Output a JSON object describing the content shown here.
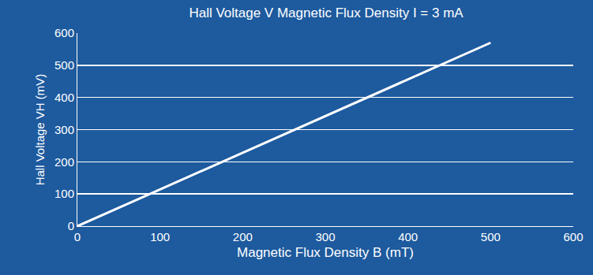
{
  "chart_data": {
    "type": "line",
    "title": "Hall Voltage V Magnetic Flux Density I = 3 mA",
    "x_label": "Magnetic Flux Density B (mT)",
    "y_label": "Hall Voltage VH (mV)",
    "x": [
      0,
      500
    ],
    "values": [
      0,
      570
    ],
    "color": "#ffffff",
    "xlim": [
      0,
      600
    ],
    "xticks": [
      0,
      100,
      200,
      300,
      400,
      500,
      600
    ],
    "ylim": [
      0,
      600
    ],
    "yticks": [
      0,
      100,
      200,
      300,
      400,
      500,
      600
    ],
    "grid": true
  }
}
